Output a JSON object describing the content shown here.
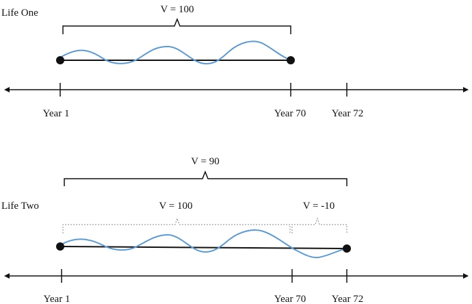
{
  "colors": {
    "wave": "#5b9bd5",
    "line": "#111111",
    "bracket_dotted": "#888888"
  },
  "life_one": {
    "label": "Life One",
    "value_label": "V = 100",
    "axis_ticks": [
      "Year 1",
      "Year 70",
      "Year 72"
    ]
  },
  "life_two": {
    "label": "Life Two",
    "total_value_label": "V = 90",
    "first_segment_label": "V = 100",
    "second_segment_label": "V = -10",
    "axis_ticks": [
      "Year 1",
      "Year 70",
      "Year 72"
    ]
  }
}
